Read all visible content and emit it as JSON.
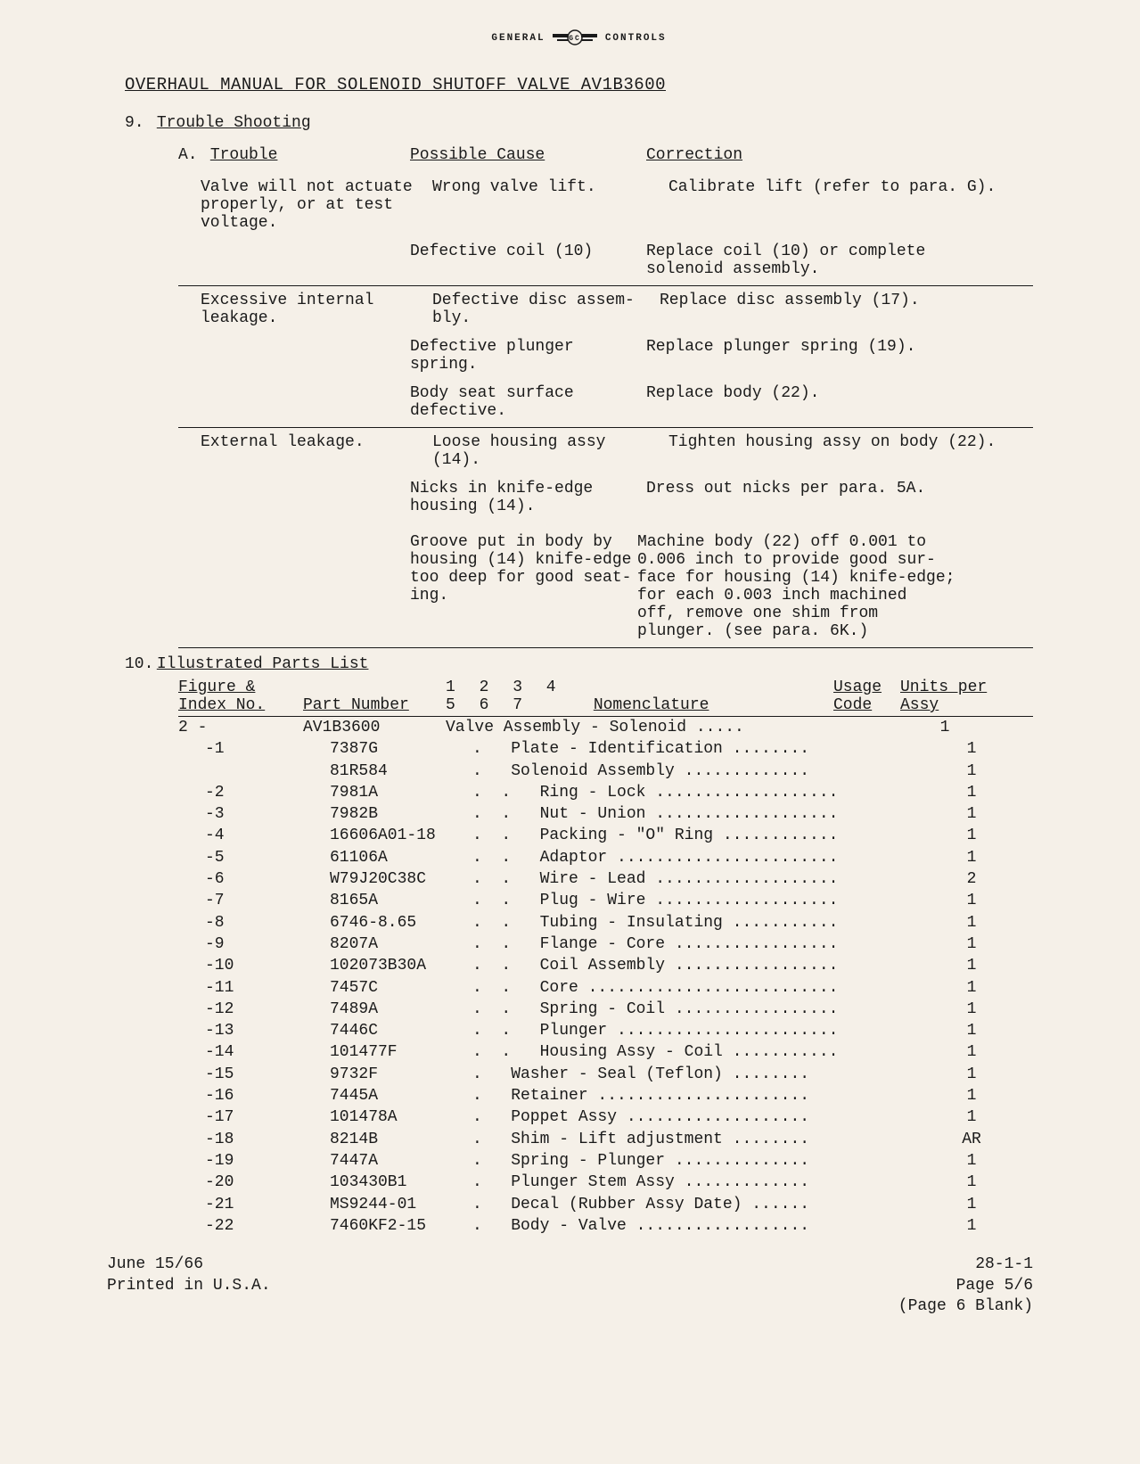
{
  "logo": {
    "left": "GENERAL",
    "right": "CONTROLS"
  },
  "title": "OVERHAUL MANUAL FOR SOLENOID SHUTOFF VALVE AV1B3600",
  "section9": {
    "num": "9.",
    "label": "Trouble Shooting",
    "subA": {
      "letter": "A.",
      "headers": {
        "trouble": "Trouble",
        "cause": "Possible Cause",
        "correction": "Correction"
      },
      "groups": [
        {
          "trouble": "Valve will not actuate properly, or at test voltage.",
          "rows": [
            {
              "cause": "Wrong valve lift.",
              "correction": "Calibrate lift (refer to para. G)."
            },
            {
              "cause": "Defective coil (10)",
              "correction": "Replace coil (10) or complete solenoid assembly."
            }
          ]
        },
        {
          "trouble": "Excessive internal leakage.",
          "rows": [
            {
              "cause": "Defective disc assembly.",
              "correction": "Replace disc assembly (17).",
              "joint_cause": "Defective disc assem-",
              "joint_corr": "Replace disc assembly (17).",
              "cause_line2": "bly."
            },
            {
              "cause": "Defective plunger spring.",
              "correction": "Replace plunger spring (19)."
            },
            {
              "cause": "Body seat surface defective.",
              "correction": "Replace body (22)."
            }
          ]
        },
        {
          "trouble": "External leakage.",
          "rows": [
            {
              "cause": "Loose housing assy (14).",
              "correction": "Tighten housing assy on body (22)."
            },
            {
              "cause": "Nicks in knife-edge housing (14).",
              "correction": "Dress out nicks per para. 5A."
            },
            {
              "cause": "Groove put in body by housing (14) knife-edge too deep for good seating.",
              "correction": "Machine body (22) off 0.001 to 0.006 inch to provide good surface for housing (14) knife-edge; for each 0.003 inch machined off, remove one shim from plunger. (see para. 6K.)",
              "joint_lines": [
                [
                  "Groove put in body by",
                  "Machine body (22) off 0.001 to"
                ],
                [
                  "housing (14) knife-edge",
                  "0.006 inch to provide good sur-"
                ],
                [
                  "too deep for good seat-",
                  "face for housing (14) knife-edge;"
                ],
                [
                  "ing.",
                  "for each 0.003 inch machined"
                ],
                [
                  "",
                  "off, remove one shim from"
                ],
                [
                  "",
                  "plunger. (see para. 6K.)"
                ]
              ]
            }
          ]
        }
      ]
    }
  },
  "section10": {
    "num": "10.",
    "label": "Illustrated Parts List",
    "headers": {
      "index_top": "Figure &",
      "index_bot": "Index No.",
      "part": "Part Number",
      "indent": "1 2 3 4 5 6 7",
      "nomen": "Nomenclature",
      "usage_top": "Usage",
      "usage_bot": "Code",
      "units_top": "Units per",
      "units_bot": "Assy"
    },
    "rows": [
      {
        "index": "2 -",
        "part": "AV1B3600",
        "indent": 0,
        "nomen": "Valve Assembly - Solenoid",
        "units": "1"
      },
      {
        "index": "-1",
        "part": "7387G",
        "indent": 1,
        "nomen": "Plate - Identification",
        "units": "1"
      },
      {
        "index": "",
        "part": "81R584",
        "indent": 1,
        "nomen": "Solenoid Assembly",
        "units": "1"
      },
      {
        "index": "-2",
        "part": "7981A",
        "indent": 2,
        "nomen": "Ring - Lock",
        "units": "1"
      },
      {
        "index": "-3",
        "part": "7982B",
        "indent": 2,
        "nomen": "Nut - Union",
        "units": "1"
      },
      {
        "index": "-4",
        "part": "16606A01-18",
        "indent": 2,
        "nomen": "Packing - \"O\" Ring",
        "units": "1"
      },
      {
        "index": "-5",
        "part": "61106A",
        "indent": 2,
        "nomen": "Adaptor",
        "units": "1"
      },
      {
        "index": "-6",
        "part": "W79J20C38C",
        "indent": 2,
        "nomen": "Wire - Lead",
        "units": "2"
      },
      {
        "index": "-7",
        "part": "8165A",
        "indent": 2,
        "nomen": "Plug - Wire",
        "units": "1"
      },
      {
        "index": "-8",
        "part": "6746-8.65",
        "indent": 2,
        "nomen": "Tubing - Insulating",
        "units": "1"
      },
      {
        "index": "-9",
        "part": "8207A",
        "indent": 2,
        "nomen": "Flange - Core",
        "units": "1"
      },
      {
        "index": "-10",
        "part": "102073B30A",
        "indent": 2,
        "nomen": "Coil Assembly",
        "units": "1"
      },
      {
        "index": "-11",
        "part": "7457C",
        "indent": 2,
        "nomen": "Core",
        "units": "1"
      },
      {
        "index": "-12",
        "part": "7489A",
        "indent": 2,
        "nomen": "Spring - Coil",
        "units": "1"
      },
      {
        "index": "-13",
        "part": "7446C",
        "indent": 2,
        "nomen": "Plunger",
        "units": "1"
      },
      {
        "index": "-14",
        "part": "101477F",
        "indent": 2,
        "nomen": "Housing Assy - Coil",
        "units": "1"
      },
      {
        "index": "-15",
        "part": "9732F",
        "indent": 1,
        "nomen": "Washer - Seal (Teflon)",
        "units": "1"
      },
      {
        "index": "-16",
        "part": "7445A",
        "indent": 1,
        "nomen": "Retainer",
        "units": "1"
      },
      {
        "index": "-17",
        "part": "101478A",
        "indent": 1,
        "nomen": "Poppet Assy",
        "units": "1"
      },
      {
        "index": "-18",
        "part": "8214B",
        "indent": 1,
        "nomen": "Shim - Lift adjustment",
        "units": "AR"
      },
      {
        "index": "-19",
        "part": "7447A",
        "indent": 1,
        "nomen": "Spring - Plunger",
        "units": "1"
      },
      {
        "index": "-20",
        "part": "103430B1",
        "indent": 1,
        "nomen": "Plunger Stem Assy",
        "units": "1"
      },
      {
        "index": "-21",
        "part": "MS9244-01",
        "indent": 1,
        "nomen": "Decal (Rubber Assy Date)",
        "units": "1"
      },
      {
        "index": "-22",
        "part": "7460KF2-15",
        "indent": 1,
        "nomen": "Body - Valve",
        "units": "1"
      }
    ]
  },
  "footer": {
    "date": "June 15/66",
    "printed": "Printed in U.S.A.",
    "code": "28-1-1",
    "page": "Page 5/6",
    "blank": "(Page 6 Blank)"
  }
}
